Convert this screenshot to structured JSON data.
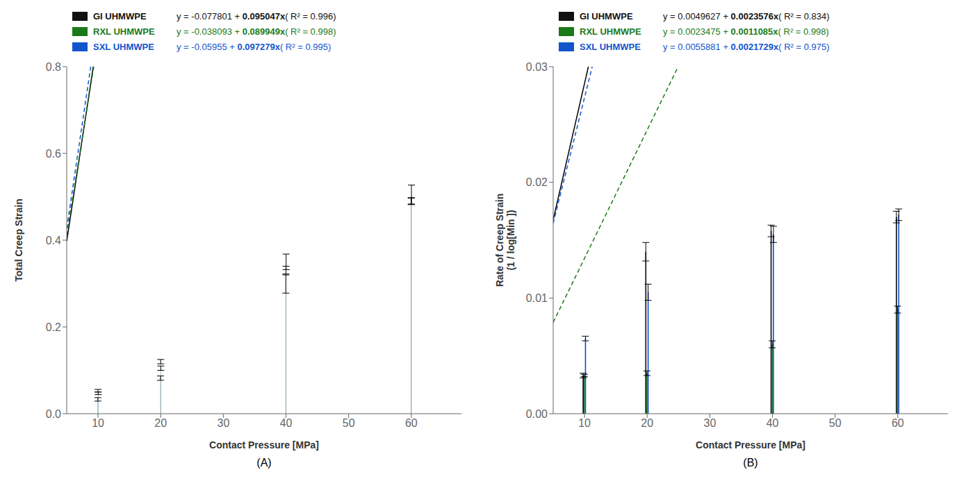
{
  "chart_data": [
    {
      "type": "bar",
      "x_label": "Contact Pressure [MPa]",
      "y_label": "Total Creep Strain",
      "annotation": "(A)",
      "legend": "top",
      "x": [
        10,
        20,
        40,
        60
      ],
      "xlim": [
        5,
        68
      ],
      "xticks": [
        10,
        20,
        30,
        40,
        50,
        60
      ],
      "ylim": [
        0,
        0.8
      ],
      "yticks": [
        {
          "value": 0,
          "label": "0.0"
        },
        0.2,
        0.4,
        0.6,
        0.8
      ],
      "series": [
        {
          "name": "GI UHMWPE",
          "type": "bar",
          "color": "#111111",
          "values": [
            0.033,
            0.082,
            0.3,
            0.49
          ],
          "errors": [
            0.004,
            0.005,
            0.022,
            0.008
          ],
          "equation": "y = -0.077801 + 0.095047x( R² = 0.996)"
        },
        {
          "name": "RXL UHMWPE",
          "type": "bar",
          "color": "#1a7a1a",
          "values": [
            0.053,
            0.12,
            0.33,
            0.49
          ],
          "errors": [
            0.003,
            0.005,
            0.01,
            0.007
          ],
          "equation": "y = -0.038093 + 0.089949x( R² = 0.998)"
        },
        {
          "name": "SXL UHMWPE",
          "type": "bar",
          "color": "#1155cc",
          "values": [
            0.047,
            0.105,
            0.35,
            0.505
          ],
          "errors": [
            0.003,
            0.005,
            0.018,
            0.022
          ],
          "equation": "y = -0.05955 + 0.097279x( R² = 0.995)"
        },
        {
          "type": "line",
          "color": "#000000",
          "line_style": "solid",
          "x": [
            5,
            9.2354
          ],
          "values": [
            0.397434,
            0.8
          ]
        },
        {
          "type": "line",
          "color": "#1a7a1a",
          "line_style": "dashed",
          "x": [
            5,
            9.3174
          ],
          "values": [
            0.411652,
            0.8
          ]
        },
        {
          "type": "line",
          "color": "#1155cc",
          "line_style": "dashed",
          "x": [
            5,
            8.8359
          ],
          "values": [
            0.426845,
            0.8
          ]
        }
      ]
    },
    {
      "type": "bar",
      "x_label": "Contact Pressure [MPa]",
      "y_label": "Rate of Creep Strain\n(1 / log[Min ])",
      "annotation": "(B)",
      "legend": "top",
      "x": [
        10,
        20,
        40,
        60
      ],
      "xlim": [
        5,
        68
      ],
      "xticks": [
        10,
        20,
        30,
        40,
        50,
        60
      ],
      "ylim": [
        0,
        0.03
      ],
      "yticks": [
        {
          "value": 0,
          "label": "0.00"
        },
        0.01,
        0.02,
        0.03
      ],
      "series": [
        {
          "name": "GI UHMWPE",
          "type": "bar",
          "color": "#111111",
          "values": [
            0.0033,
            0.014,
            0.0158,
            0.017
          ],
          "errors": [
            0.0002,
            0.0008,
            0.0005,
            0.0005
          ],
          "equation": "y = 0.0049627 + 0.0023576x( R² = 0.834)"
        },
        {
          "name": "RXL UHMWPE",
          "type": "bar",
          "color": "#1a7a1a",
          "values": [
            0.0033,
            0.0035,
            0.006,
            0.009
          ],
          "errors": [
            0.0001,
            0.0002,
            0.0003,
            0.0003
          ],
          "equation": "y = 0.0023475 + 0.0011085x( R² = 0.998)"
        },
        {
          "name": "SXL UHMWPE",
          "type": "bar",
          "color": "#1155cc",
          "values": [
            0.0065,
            0.0105,
            0.0155,
            0.0172
          ],
          "errors": [
            0.0002,
            0.0007,
            0.0007,
            0.0005
          ],
          "equation": "y = 0.0055881 + 0.0021729x( R² = 0.975)"
        },
        {
          "type": "line",
          "color": "#000000",
          "line_style": "solid",
          "x": [
            5,
            10.6198
          ],
          "values": [
            0.0167507,
            0.03
          ]
        },
        {
          "type": "line",
          "color": "#1a7a1a",
          "line_style": "dashed",
          "x": [
            5,
            24.9459
          ],
          "values": [
            0.00789,
            0.03
          ]
        },
        {
          "type": "line",
          "color": "#1155cc",
          "line_style": "dashed",
          "x": [
            5,
            11.2347
          ],
          "values": [
            0.0164526,
            0.03
          ]
        }
      ]
    }
  ]
}
